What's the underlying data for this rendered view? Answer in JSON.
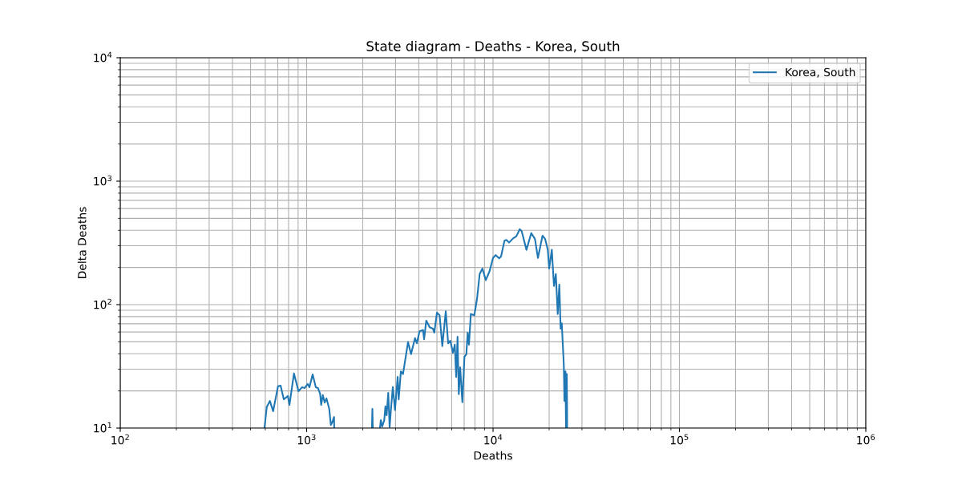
{
  "chart_data": {
    "type": "line",
    "title": "State diagram - Deaths - Korea, South",
    "xlabel": "Deaths",
    "ylabel": "Delta Deaths",
    "log": "xy",
    "grid": true,
    "legend": "top right",
    "xlim": [
      100,
      1000000
    ],
    "ylim": [
      10,
      10000
    ],
    "xticks": [
      {
        "value": 100,
        "label": "10$^{2}$"
      },
      {
        "value": 1000,
        "label": "10$^{3}$"
      },
      {
        "value": 10000,
        "label": "10$^{4}$"
      },
      {
        "value": 100000,
        "label": "10$^{5}$"
      },
      {
        "value": 1000000,
        "label": "10$^{6}$"
      }
    ],
    "yticks": [
      {
        "value": 10,
        "label": "10$^{1}$"
      },
      {
        "value": 100,
        "label": "10$^{2}$"
      },
      {
        "value": 1000,
        "label": "10$^{3}$"
      },
      {
        "value": 10000,
        "label": "10$^{4}$"
      }
    ],
    "series": [
      {
        "name": "Korea, South",
        "color": "#1f77b4",
        "x": [
          594,
          611,
          635,
          661,
          702,
          725,
          754,
          792,
          809,
          855,
          904,
          944,
          975,
          1014,
          1035,
          1077,
          1120,
          1150,
          1181,
          1197,
          1221,
          1250,
          1278,
          1322,
          1349,
          1371,
          1403,
          1406,
          1800,
          2241,
          2253,
          2264,
          2350,
          2475,
          2500,
          2543,
          2609,
          2646,
          2687,
          2741,
          2788,
          2835,
          2900,
          2979,
          3078,
          3118,
          3203,
          3289,
          3500,
          3631,
          3815,
          3903,
          4033,
          4213,
          4268,
          4384,
          4575,
          4760,
          4841,
          5002,
          5168,
          5345,
          5577,
          5745,
          5899,
          6095,
          6236,
          6343,
          6451,
          6553,
          6665,
          6846,
          7025,
          7194,
          7310,
          7430,
          7600,
          7937,
          8202,
          8478,
          8769,
          9148,
          9583,
          10000,
          10332,
          10792,
          11041,
          11522,
          11798,
          12190,
          12809,
          13328,
          13909,
          14243,
          15111,
          16040,
          16787,
          17416,
          18428,
          19040,
          19673,
          20006,
          20671,
          21232,
          21721,
          22243,
          22687,
          23051,
          23373,
          23841,
          23984,
          24150,
          24464,
          24634,
          24879,
          24953,
          24980
        ],
        "values": [
          10,
          14.8,
          16.6,
          13.7,
          21.8,
          22.1,
          17.1,
          18.2,
          15.4,
          27.7,
          19.9,
          21.4,
          21.1,
          22.8,
          21.4,
          27.2,
          21.4,
          21.1,
          19.0,
          15.4,
          18.5,
          16.1,
          17.4,
          14.3,
          10.6,
          11.1,
          12.3,
          10,
          null,
          10,
          14.3,
          10,
          null,
          10.1,
          11.6,
          10.3,
          11.6,
          15.0,
          12.7,
          19.3,
          10.2,
          14.3,
          21.5,
          14.0,
          26.0,
          17.1,
          28.8,
          27.4,
          49.8,
          39.7,
          53.6,
          48.6,
          60.8,
          62.3,
          52.4,
          74.2,
          65.5,
          63.9,
          59.3,
          86.1,
          82.0,
          46.2,
          88.3,
          48.6,
          51.0,
          40.8,
          47.4,
          26.0,
          55.0,
          18.8,
          31.0,
          16.2,
          37.8,
          39.7,
          59.3,
          47.4,
          84.0,
          82.0,
          110.6,
          177,
          196,
          158,
          186.6,
          239,
          252,
          237,
          245,
          330,
          334,
          318,
          344,
          357,
          408,
          394,
          278,
          380,
          340,
          239,
          362,
          340,
          278,
          196,
          278,
          141.6,
          177,
          84.0,
          145,
          63.9,
          70.6,
          38.8,
          31.8,
          16.6,
          28.8,
          10,
          27.4,
          15.8,
          10
        ]
      }
    ]
  }
}
